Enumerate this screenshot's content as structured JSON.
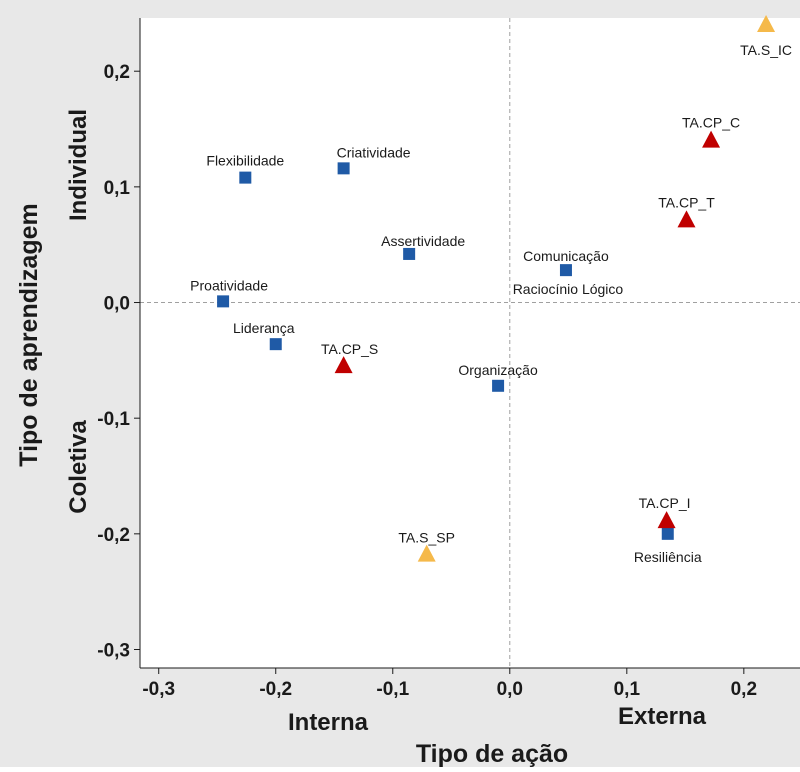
{
  "chart_data": {
    "type": "scatter",
    "title": "",
    "xlabel": "Tipo de ação",
    "ylabel": "Tipo de aprendizagem",
    "xlim": [
      -0.316,
      0.248
    ],
    "ylim": [
      -0.316,
      0.246
    ],
    "x_ticks": [
      -0.3,
      -0.2,
      -0.1,
      0.0,
      0.1,
      0.2
    ],
    "x_tick_labels": [
      "-0,3",
      "-0,2",
      "-0,1",
      "0,0",
      "0,1",
      "0,2"
    ],
    "y_ticks": [
      0.2,
      0.1,
      0.0,
      -0.1,
      -0.2,
      -0.3
    ],
    "y_tick_labels": [
      "0,2",
      "0,1",
      "0,0",
      "-0,1",
      "-0,2",
      "-0,3"
    ],
    "reference_lines": {
      "x": 0.0,
      "y": 0.0,
      "style": "dashed"
    },
    "quadrant_labels": {
      "x_left": "Interna",
      "x_right": "Externa",
      "y_top": "Individual",
      "y_bottom": "Coletiva"
    },
    "series": [
      {
        "marker": "square",
        "color": "#1f5aa6",
        "points": [
          {
            "label": "Flexibilidade",
            "x": -0.226,
            "y": 0.108
          },
          {
            "label": "Criatividade",
            "x": -0.142,
            "y": 0.116
          },
          {
            "label": "Assertividade",
            "x": -0.086,
            "y": 0.042
          },
          {
            "label": "Comunicação",
            "x": 0.048,
            "y": 0.028
          },
          {
            "label": "Raciocínio Lógico",
            "x": 0.048,
            "y": 0.028
          },
          {
            "label": "Proatividade",
            "x": -0.245,
            "y": 0.001
          },
          {
            "label": "Liderança",
            "x": -0.2,
            "y": -0.036
          },
          {
            "label": "Organização",
            "x": -0.01,
            "y": -0.072
          },
          {
            "label": "Resiliência",
            "x": 0.135,
            "y": -0.2
          }
        ]
      },
      {
        "marker": "triangle",
        "color": "#c00000",
        "points": [
          {
            "label": "TA.CP_C",
            "x": 0.172,
            "y": 0.14
          },
          {
            "label": "TA.CP_T",
            "x": 0.151,
            "y": 0.071
          },
          {
            "label": "TA.CP_S",
            "x": -0.142,
            "y": -0.055
          },
          {
            "label": "TA.CP_I",
            "x": 0.134,
            "y": -0.189
          }
        ]
      },
      {
        "marker": "triangle",
        "color": "#f5b94a",
        "points": [
          {
            "label": "TA.S_IC",
            "x": 0.219,
            "y": 0.24
          },
          {
            "label": "TA.S_SP",
            "x": -0.071,
            "y": -0.218
          }
        ]
      }
    ]
  }
}
